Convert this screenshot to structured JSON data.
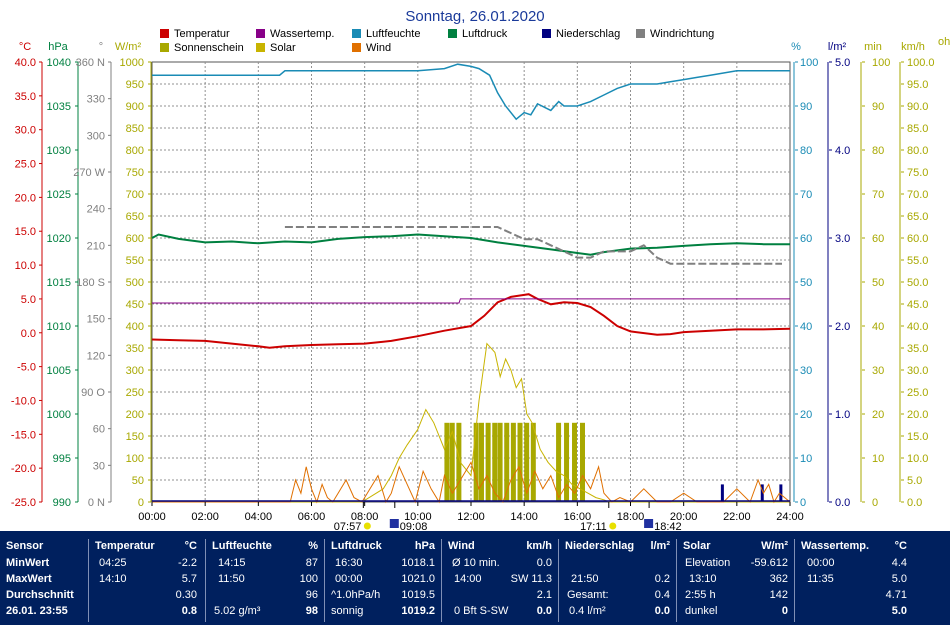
{
  "chart_data": {
    "type": "line",
    "title": "Sonntag, 26.01.2020",
    "legend": [
      {
        "label": "Temperatur",
        "color": "#cc0000"
      },
      {
        "label": "Wassertemp.",
        "color": "#880088"
      },
      {
        "label": "Luftfeuchte",
        "color": "#1a8bb5"
      },
      {
        "label": "Luftdruck",
        "color": "#008040"
      },
      {
        "label": "Niederschlag",
        "color": "#000080"
      },
      {
        "label": "Windrichtung",
        "color": "#808080"
      },
      {
        "label": "Sonnenschein",
        "color": "#a8a800"
      },
      {
        "label": "Solar",
        "color": "#c8b400"
      },
      {
        "label": "Wind",
        "color": "#e07000"
      }
    ],
    "x_ticks": [
      "00:00",
      "02:00",
      "04:00",
      "06:00",
      "08:00",
      "10:00",
      "12:00",
      "14:00",
      "16:00",
      "18:00",
      "20:00",
      "22:00",
      "24:00"
    ],
    "xlim": [
      0,
      24
    ],
    "grid": true,
    "axes": [
      {
        "id": "temp",
        "unit": "°C",
        "color": "#cc0000",
        "ticks": [
          "40.0",
          "35.0",
          "30.0",
          "25.0",
          "20.0",
          "15.0",
          "10.0",
          "5.0",
          "0.0",
          "-5.0",
          "-10.0",
          "-15.0",
          "-20.0",
          "-25.0"
        ],
        "range": [
          -25,
          40
        ]
      },
      {
        "id": "press",
        "unit": "hPa",
        "color": "#008040",
        "ticks": [
          "1040",
          "1035",
          "1030",
          "1025",
          "1020",
          "1015",
          "1010",
          "1005",
          "1000",
          "995",
          "990"
        ],
        "range": [
          990,
          1040
        ]
      },
      {
        "id": "dir",
        "unit": "°",
        "color": "#808080",
        "ticks": [
          "360 N",
          "330",
          "300",
          "270 W",
          "240",
          "210",
          "180 S",
          "150",
          "120",
          "90 O",
          "60",
          "30",
          "0 N"
        ],
        "range": [
          0,
          360
        ]
      },
      {
        "id": "solar",
        "unit": "W/m²",
        "color": "#a8a800",
        "ticks": [
          "1000",
          "950",
          "900",
          "850",
          "800",
          "750",
          "700",
          "650",
          "600",
          "550",
          "500",
          "450",
          "400",
          "350",
          "300",
          "250",
          "200",
          "150",
          "100",
          "50",
          "0"
        ],
        "range": [
          0,
          1000
        ]
      },
      {
        "id": "hum",
        "unit": "%",
        "color": "#1a8bb5",
        "ticks": [
          "100",
          "90",
          "80",
          "70",
          "60",
          "50",
          "40",
          "30",
          "20",
          "10",
          "0"
        ],
        "range": [
          0,
          100
        ]
      },
      {
        "id": "rain",
        "unit": "l/m²",
        "color": "#000080",
        "ticks": [
          "5.0",
          "4.0",
          "3.0",
          "2.0",
          "1.0",
          "0.0"
        ],
        "range": [
          0,
          5
        ]
      },
      {
        "id": "min",
        "unit": "min",
        "color": "#a8a800",
        "ticks": [
          "100",
          "90",
          "80",
          "70",
          "60",
          "50",
          "40",
          "30",
          "20",
          "10",
          "0"
        ],
        "range": [
          0,
          100
        ]
      },
      {
        "id": "wind",
        "unit": "km/h",
        "color": "#a8a800",
        "ticks": [
          "100.0",
          "95.0",
          "90.0",
          "85.0",
          "80.0",
          "75.0",
          "70.0",
          "65.0",
          "60.0",
          "55.0",
          "50.0",
          "45.0",
          "40.0",
          "35.0",
          "30.0",
          "25.0",
          "20.0",
          "15.0",
          "10.0",
          "5.0",
          "0.0"
        ],
        "range": [
          0,
          100
        ]
      }
    ],
    "right_edge_label": "oh",
    "sun_markers": {
      "sunrise": "07:57",
      "sunrise_end": "09:08",
      "sunset": "17:11",
      "sunset_end": "18:42"
    },
    "series": [
      {
        "name": "Temperatur",
        "axis": "temp",
        "color": "#cc0000",
        "x": [
          0,
          1,
          2,
          3,
          4,
          4.42,
          5,
          6,
          7,
          8,
          9,
          10,
          11,
          12,
          12.5,
          13,
          13.5,
          14,
          14.17,
          14.5,
          15,
          15.5,
          16,
          16.5,
          17,
          17.5,
          18,
          19,
          19.5,
          20,
          21,
          22,
          23,
          24
        ],
        "y": [
          -1.0,
          -1.1,
          -1.2,
          -1.6,
          -2.0,
          -2.2,
          -2.0,
          -1.8,
          -1.7,
          -1.6,
          -1.2,
          -0.5,
          0.3,
          1.0,
          2.5,
          4.5,
          5.3,
          5.6,
          5.7,
          5.0,
          4.2,
          4.5,
          4.4,
          3.8,
          2.5,
          1.0,
          0.2,
          -0.3,
          -0.2,
          0.1,
          0.3,
          0.5,
          0.5,
          0.6
        ]
      },
      {
        "name": "Wassertemp.",
        "axis": "temp",
        "color": "#880088",
        "x": [
          0,
          11.55,
          11.6,
          24
        ],
        "y": [
          4.4,
          4.4,
          5.0,
          5.0
        ]
      },
      {
        "name": "Luftfeuchte",
        "axis": "hum",
        "color": "#1a8bb5",
        "x": [
          0,
          1,
          2,
          3,
          4,
          4.8,
          5,
          6,
          7,
          8,
          9,
          10,
          11,
          11.5,
          12,
          12.3,
          12.7,
          13,
          13.3,
          13.7,
          14,
          14.25,
          14.5,
          15,
          15.3,
          15.5,
          16,
          16.5,
          17,
          17.5,
          18,
          19,
          19.5,
          20,
          20.5,
          21,
          22,
          23,
          24
        ],
        "y": [
          97,
          97,
          97,
          97,
          97,
          97,
          98,
          98,
          98,
          98,
          98,
          98,
          98.5,
          99.5,
          99,
          98.5,
          97,
          93,
          90,
          87,
          88.5,
          88,
          90.5,
          89,
          91,
          90,
          90,
          91,
          92.5,
          94,
          95,
          95,
          95.5,
          96,
          96.5,
          97,
          98,
          98,
          98
        ]
      },
      {
        "name": "Luftdruck",
        "axis": "press",
        "color": "#008040",
        "x": [
          0,
          0.25,
          1,
          2,
          3,
          4,
          5,
          6,
          7,
          8,
          9,
          10,
          11,
          12,
          13,
          14,
          15,
          16,
          16.5,
          17,
          18,
          19,
          20,
          21,
          22,
          23,
          24
        ],
        "y": [
          1020.0,
          1020.4,
          1019.9,
          1019.5,
          1019.6,
          1019.4,
          1019.6,
          1019.5,
          1019.9,
          1020.1,
          1020.2,
          1020.4,
          1020.2,
          1020.0,
          1019.5,
          1019.1,
          1018.7,
          1018.3,
          1018.1,
          1018.4,
          1018.8,
          1018.9,
          1019.1,
          1019.3,
          1019.4,
          1019.3,
          1019.3
        ]
      },
      {
        "name": "Windrichtung",
        "axis": "dir",
        "color": "#808080",
        "x": [
          5,
          6,
          7,
          8,
          9,
          10,
          11,
          12,
          13,
          14,
          14.5,
          15,
          15.5,
          16,
          16.5,
          17,
          17.5,
          18,
          18.5,
          19,
          19.5,
          20,
          21,
          22,
          23,
          23.7
        ],
        "y": [
          225,
          225,
          225,
          225,
          225,
          225,
          225,
          225,
          225,
          215,
          215,
          210,
          205,
          200,
          200,
          205,
          205,
          205,
          210,
          200,
          195,
          195,
          195,
          195,
          195,
          195
        ]
      },
      {
        "name": "Solar",
        "axis": "solar",
        "color": "#c8b400",
        "x": [
          0,
          7.9,
          8.3,
          8.7,
          9,
          9.3,
          9.6,
          10,
          10.3,
          10.6,
          11,
          11.3,
          11.6,
          12,
          12.3,
          12.6,
          12.9,
          13.1,
          13.3,
          13.5,
          13.7,
          13.9,
          14.1,
          14.3,
          14.6,
          14.9,
          15.2,
          15.5,
          15.8,
          16.1,
          16.4,
          16.7,
          17,
          17.2,
          24
        ],
        "y": [
          0,
          0,
          15,
          30,
          60,
          100,
          130,
          165,
          210,
          180,
          120,
          160,
          90,
          60,
          230,
          360,
          340,
          285,
          325,
          300,
          260,
          280,
          200,
          180,
          120,
          90,
          70,
          60,
          40,
          30,
          20,
          10,
          5,
          0,
          0
        ]
      },
      {
        "name": "Wind",
        "axis": "wind",
        "color": "#e07000",
        "x": [
          0,
          5.2,
          5.4,
          5.6,
          5.8,
          6,
          6.2,
          6.4,
          6.6,
          6.8,
          7,
          7.3,
          7.6,
          7.9,
          8.2,
          8.5,
          8.8,
          9,
          9.3,
          9.6,
          9.9,
          10.2,
          10.5,
          10.8,
          11,
          11.3,
          11.6,
          12,
          12.3,
          12.6,
          12.9,
          13.2,
          13.5,
          13.8,
          14.1,
          14.4,
          14.7,
          15,
          15.3,
          15.6,
          15.9,
          16.2,
          16.5,
          16.8,
          17,
          17.3,
          17.6,
          18,
          18.5,
          19,
          19.5,
          20,
          20.5,
          21,
          21.5,
          22,
          22.5,
          22.8,
          23,
          23.2,
          23.4,
          23.6,
          23.8,
          24
        ],
        "y": [
          0,
          0,
          5,
          2,
          8,
          3,
          0,
          4,
          1,
          0,
          2,
          5,
          1,
          0,
          3,
          6,
          0,
          2,
          8,
          4,
          0,
          7,
          3,
          0,
          6,
          2,
          5,
          9,
          3,
          6,
          2,
          0,
          5,
          8,
          2,
          7,
          3,
          6,
          1,
          4,
          2,
          6,
          3,
          8,
          2,
          0,
          1,
          0,
          3,
          0,
          0,
          2,
          0,
          0,
          0,
          3,
          0,
          5,
          2,
          4,
          0,
          2,
          1,
          0
        ]
      }
    ],
    "sunshine_bars_x": [
      11.0,
      11.2,
      11.45,
      12.1,
      12.3,
      12.55,
      12.8,
      13.0,
      13.25,
      13.5,
      13.75,
      14.0,
      14.25,
      15.2,
      15.5,
      15.8,
      16.1
    ],
    "precip_bars_x": [
      21.4,
      22.9,
      23.6
    ]
  },
  "stats": {
    "sensor": {
      "header": "Sensor",
      "rows": [
        "MinWert",
        "MaxWert",
        "Durchschnitt"
      ],
      "footer": "26.01. 23:55"
    },
    "temperatur": {
      "header": "Temperatur",
      "unit": "°C",
      "min_time": "04:25",
      "min_val": "-2.2",
      "max_time": "14:10",
      "max_val": "5.7",
      "avg_val": "0.30",
      "cur_val": "0.8"
    },
    "luftfeuchte": {
      "header": "Luftfeuchte",
      "unit": "%",
      "min_time": "14:15",
      "min_val": "87",
      "max_time": "11:50",
      "max_val": "100",
      "avg_val": "96",
      "abs_val": "5.02 g/m³",
      "cur_val": "98"
    },
    "luftdruck": {
      "header": "Luftdruck",
      "unit": "hPa",
      "min_time": "16:30",
      "min_val": "1018.1",
      "max_time": "00:00",
      "max_val": "1021.0",
      "trend_label": "^1.0hPa/h",
      "trend_val": "1019.5",
      "weather": "sonnig",
      "cur_val": "1019.2"
    },
    "wind": {
      "header": "Wind",
      "unit": "km/h",
      "row1_label": "Ø 10 min.",
      "row1_val": "0.0",
      "max_time": "14:00",
      "max_val": "SW 11.3",
      "avg_val": "2.1",
      "cur_label": "0 Bft S-SW",
      "cur_val": "0.0"
    },
    "niederschlag": {
      "header": "Niederschlag",
      "unit": "l/m²",
      "max_time": "21:50",
      "max_val": "0.2",
      "total_label": "Gesamt:",
      "total_val": "0.4",
      "rate_val": "0.4 l/m²",
      "cur_val": "0.0"
    },
    "solar": {
      "header": "Solar",
      "unit": "W/m²",
      "elev_label": "Elevation",
      "elev_val": "-59.612",
      "max_time": "13:10",
      "max_val": "362",
      "sun_hours": "2:55 h",
      "avg_val": "142",
      "state": "dunkel",
      "cur_val": "0"
    },
    "wassertemp": {
      "header": "Wassertemp.",
      "unit": "°C",
      "min_time": "00:00",
      "min_val": "4.4",
      "max_time": "11:35",
      "max_val": "5.0",
      "avg_val": "4.71",
      "cur_val": "5.0"
    }
  }
}
